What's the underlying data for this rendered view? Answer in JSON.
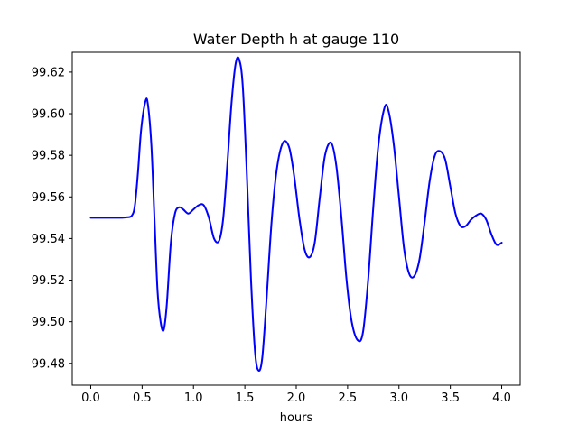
{
  "chart_data": {
    "type": "line",
    "title": "Water Depth h at gauge 110",
    "xlabel": "hours",
    "ylabel": "",
    "xlim": [
      -0.18,
      4.18
    ],
    "ylim": [
      99.4695,
      99.6295
    ],
    "xticks": [
      0.0,
      0.5,
      1.0,
      1.5,
      2.0,
      2.5,
      3.0,
      3.5,
      4.0
    ],
    "xtick_labels": [
      "0.0",
      "0.5",
      "1.0",
      "1.5",
      "2.0",
      "2.5",
      "3.0",
      "3.5",
      "4.0"
    ],
    "yticks": [
      99.48,
      99.5,
      99.52,
      99.54,
      99.56,
      99.58,
      99.6,
      99.62
    ],
    "ytick_labels": [
      "99.48",
      "99.50",
      "99.52",
      "99.54",
      "99.56",
      "99.58",
      "99.60",
      "99.62"
    ],
    "grid": false,
    "series": [
      {
        "color": "#0000ff",
        "x": [
          0.0,
          0.1,
          0.2,
          0.3,
          0.35,
          0.4,
          0.43,
          0.46,
          0.49,
          0.53,
          0.555,
          0.59,
          0.62,
          0.65,
          0.68,
          0.71,
          0.74,
          0.78,
          0.82,
          0.86,
          0.9,
          0.95,
          1.0,
          1.05,
          1.1,
          1.15,
          1.2,
          1.25,
          1.29,
          1.33,
          1.37,
          1.41,
          1.445,
          1.48,
          1.52,
          1.56,
          1.6,
          1.635,
          1.67,
          1.71,
          1.76,
          1.81,
          1.87,
          1.93,
          1.98,
          2.03,
          2.08,
          2.13,
          2.18,
          2.23,
          2.28,
          2.34,
          2.39,
          2.44,
          2.49,
          2.54,
          2.6,
          2.65,
          2.7,
          2.75,
          2.8,
          2.86,
          2.9,
          2.95,
          3.0,
          3.05,
          3.1,
          3.15,
          3.2,
          3.25,
          3.3,
          3.35,
          3.4,
          3.45,
          3.5,
          3.55,
          3.6,
          3.65,
          3.7,
          3.75,
          3.8,
          3.85,
          3.9,
          3.95,
          4.0
        ],
        "y": [
          99.55,
          99.55,
          99.55,
          99.55,
          99.5502,
          99.551,
          99.556,
          99.572,
          99.592,
          99.6055,
          99.605,
          99.585,
          99.55,
          99.515,
          99.5,
          99.496,
          99.508,
          99.538,
          99.552,
          99.555,
          99.554,
          99.552,
          99.554,
          99.556,
          99.556,
          99.55,
          99.54,
          99.539,
          99.55,
          99.576,
          99.605,
          99.624,
          99.626,
          99.613,
          99.57,
          99.52,
          99.485,
          99.4765,
          99.483,
          99.51,
          99.548,
          99.573,
          99.586,
          99.584,
          99.57,
          99.55,
          99.535,
          99.531,
          99.538,
          99.56,
          99.58,
          99.586,
          99.575,
          99.55,
          99.52,
          99.5,
          99.491,
          99.495,
          99.52,
          99.555,
          99.585,
          99.603,
          99.601,
          99.585,
          99.56,
          99.535,
          99.523,
          99.522,
          99.53,
          99.548,
          99.568,
          99.58,
          99.582,
          99.578,
          99.565,
          99.552,
          99.546,
          99.546,
          99.549,
          99.551,
          99.552,
          99.549,
          99.542,
          99.537,
          99.538
        ]
      }
    ]
  }
}
